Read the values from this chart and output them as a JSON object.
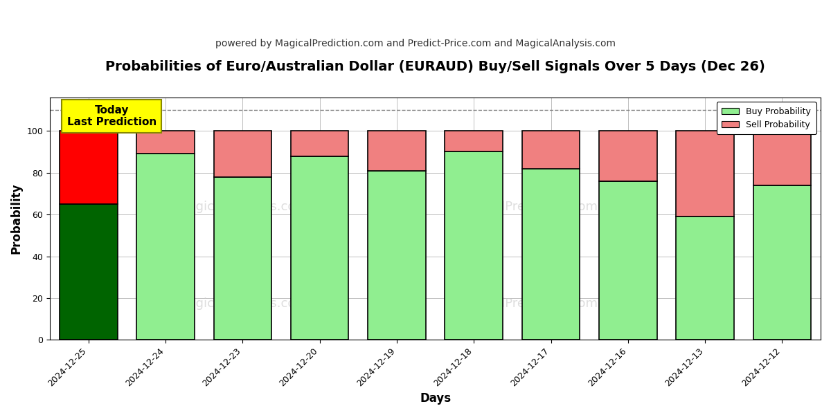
{
  "title": "Probabilities of Euro/Australian Dollar (EURAUD) Buy/Sell Signals Over 5 Days (Dec 26)",
  "subtitle": "powered by MagicalPrediction.com and Predict-Price.com and MagicalAnalysis.com",
  "xlabel": "Days",
  "ylabel": "Probability",
  "categories": [
    "2024-12-25",
    "2024-12-24",
    "2024-12-23",
    "2024-12-20",
    "2024-12-19",
    "2024-12-18",
    "2024-12-17",
    "2024-12-16",
    "2024-12-13",
    "2024-12-12"
  ],
  "buy_values": [
    65,
    89,
    78,
    88,
    81,
    90,
    82,
    76,
    59,
    74
  ],
  "sell_values": [
    35,
    11,
    22,
    12,
    19,
    10,
    18,
    24,
    41,
    26
  ],
  "buy_colors": [
    "#006400",
    "#90EE90",
    "#90EE90",
    "#90EE90",
    "#90EE90",
    "#90EE90",
    "#90EE90",
    "#90EE90",
    "#90EE90",
    "#90EE90"
  ],
  "sell_colors": [
    "#FF0000",
    "#F08080",
    "#F08080",
    "#F08080",
    "#F08080",
    "#F08080",
    "#F08080",
    "#F08080",
    "#F08080",
    "#F08080"
  ],
  "legend_buy_color": "#90EE90",
  "legend_sell_color": "#F08080",
  "today_box_color": "#FFFF00",
  "today_label": "Today\nLast Prediction",
  "dashed_line_y": 110,
  "ylim": [
    0,
    116
  ],
  "yticks": [
    0,
    20,
    40,
    60,
    80,
    100
  ],
  "background_color": "#ffffff",
  "bar_edge_color": "#000000",
  "bar_linewidth": 1.2,
  "title_fontsize": 14,
  "subtitle_fontsize": 10,
  "axis_label_fontsize": 12,
  "tick_fontsize": 9,
  "bar_width": 0.75,
  "watermark_color": "#c8c8c8",
  "watermark_alpha": 0.6
}
